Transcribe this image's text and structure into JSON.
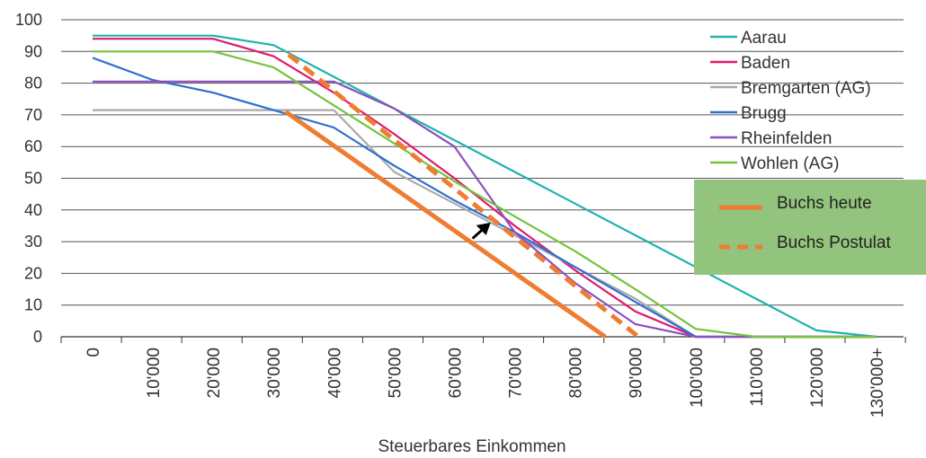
{
  "chart_data": {
    "type": "line",
    "title": "",
    "xlabel": "Steuerbares Einkommen",
    "ylabel": "",
    "categories": [
      "0",
      "10'000",
      "20'000",
      "30'000",
      "40'000",
      "50'000",
      "60'000",
      "70'000",
      "80'000",
      "90'000",
      "100'000",
      "110'000",
      "120'000",
      "130'000+"
    ],
    "x_values": [
      0,
      10000,
      20000,
      30000,
      40000,
      50000,
      60000,
      70000,
      80000,
      90000,
      100000,
      110000,
      120000,
      130000
    ],
    "xlim": [
      -5000,
      135000
    ],
    "ylim": [
      0,
      100
    ],
    "yticks": [
      0,
      10,
      20,
      30,
      40,
      50,
      60,
      70,
      80,
      90,
      100
    ],
    "grid": "horizontal",
    "legend_position": "top-right",
    "series": [
      {
        "name": "Aarau",
        "color": "#1fb3ad",
        "points": [
          [
            0,
            95
          ],
          [
            20000,
            95
          ],
          [
            30000,
            92
          ],
          [
            40000,
            82
          ],
          [
            50000,
            72
          ],
          [
            60000,
            62
          ],
          [
            70000,
            52
          ],
          [
            80000,
            42
          ],
          [
            90000,
            32
          ],
          [
            100000,
            22
          ],
          [
            110000,
            12
          ],
          [
            120000,
            2
          ],
          [
            130000,
            0
          ]
        ]
      },
      {
        "name": "Baden",
        "color": "#e0196e",
        "points": [
          [
            0,
            94
          ],
          [
            20000,
            94
          ],
          [
            30000,
            88.5
          ],
          [
            40000,
            77
          ],
          [
            50000,
            64
          ],
          [
            60000,
            50
          ],
          [
            70000,
            35
          ],
          [
            80000,
            21
          ],
          [
            90000,
            8
          ],
          [
            100000,
            0
          ],
          [
            130000,
            0
          ]
        ]
      },
      {
        "name": "Bremgarten (AG)",
        "color": "#aaaaaa",
        "points": [
          [
            0,
            71.5
          ],
          [
            40000,
            71.5
          ],
          [
            50000,
            52
          ],
          [
            60000,
            42
          ],
          [
            70000,
            32
          ],
          [
            80000,
            22
          ],
          [
            90000,
            12
          ],
          [
            100000,
            0
          ],
          [
            130000,
            0
          ]
        ]
      },
      {
        "name": "Brugg",
        "color": "#2e6fd0",
        "points": [
          [
            0,
            88
          ],
          [
            10000,
            81
          ],
          [
            20000,
            77
          ],
          [
            30000,
            71.5
          ],
          [
            40000,
            66
          ],
          [
            50000,
            54
          ],
          [
            60000,
            43
          ],
          [
            70000,
            33
          ],
          [
            80000,
            22
          ],
          [
            90000,
            11
          ],
          [
            100000,
            0
          ],
          [
            130000,
            0
          ]
        ]
      },
      {
        "name": "Rheinfelden",
        "color": "#8a4fc0",
        "points": [
          [
            0,
            80.5
          ],
          [
            40000,
            80.5
          ],
          [
            50000,
            72
          ],
          [
            60000,
            60
          ],
          [
            70000,
            33
          ],
          [
            80000,
            17
          ],
          [
            90000,
            4
          ],
          [
            100000,
            0
          ],
          [
            130000,
            0
          ]
        ]
      },
      {
        "name": "Wohlen (AG)",
        "color": "#74c43c",
        "points": [
          [
            0,
            90
          ],
          [
            20000,
            90
          ],
          [
            30000,
            85
          ],
          [
            40000,
            73
          ],
          [
            50000,
            61
          ],
          [
            60000,
            49
          ],
          [
            70000,
            38
          ],
          [
            80000,
            27
          ],
          [
            90000,
            15
          ],
          [
            100000,
            2.5
          ],
          [
            110000,
            0
          ],
          [
            130000,
            0
          ]
        ]
      }
    ],
    "overlay_series": [
      {
        "name": "Buchs heute",
        "color": "#ee7d31",
        "style": "solid",
        "points": [
          [
            32000,
            71
          ],
          [
            85000,
            0
          ]
        ]
      },
      {
        "name": "Buchs Postulat",
        "color": "#ee7d31",
        "style": "dashed",
        "points": [
          [
            32500,
            89
          ],
          [
            90500,
            0
          ]
        ]
      }
    ],
    "arrow": {
      "from": [
        63000,
        31
      ],
      "to": [
        66000,
        36
      ],
      "color": "#000000"
    },
    "overlay_legend": {
      "background": "#93c47d",
      "position": "right"
    }
  }
}
